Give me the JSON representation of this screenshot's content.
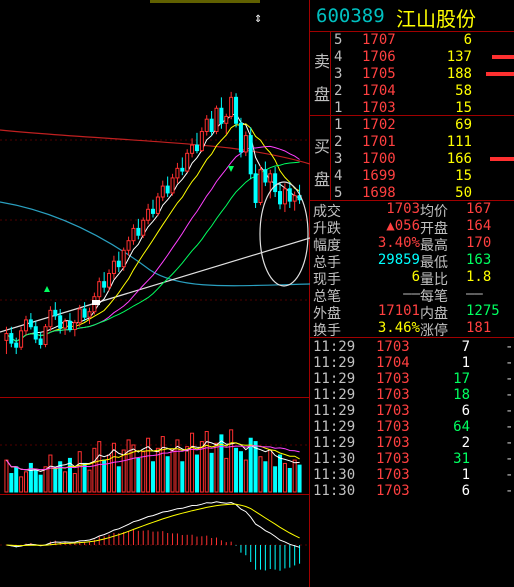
{
  "stock": {
    "code": "600389",
    "name": "江山股份"
  },
  "order_book": {
    "sell_label": "卖盘",
    "buy_label": "买盘",
    "sell": [
      {
        "level": "5",
        "price": "1707",
        "vol": "6"
      },
      {
        "level": "4",
        "price": "1706",
        "vol": "137"
      },
      {
        "level": "3",
        "price": "1705",
        "vol": "188"
      },
      {
        "level": "2",
        "price": "1704",
        "vol": "58"
      },
      {
        "level": "1",
        "price": "1703",
        "vol": "15"
      }
    ],
    "buy": [
      {
        "level": "1",
        "price": "1702",
        "vol": "69"
      },
      {
        "level": "2",
        "price": "1701",
        "vol": "111"
      },
      {
        "level": "3",
        "price": "1700",
        "vol": "166"
      },
      {
        "level": "4",
        "price": "1699",
        "vol": "15"
      },
      {
        "level": "5",
        "price": "1698",
        "vol": "50"
      }
    ]
  },
  "stats": [
    {
      "k": "成交",
      "v": "1703",
      "k2": "均价",
      "v2": "167"
    },
    {
      "k": "升跌",
      "v": "▲056",
      "k2": "开盘",
      "v2": "164"
    },
    {
      "k": "幅度",
      "v": "3.40%",
      "k2": "最高",
      "v2": "170"
    },
    {
      "k": "总手",
      "v": "29859",
      "k2": "最低",
      "v2": "163"
    },
    {
      "k": "现手",
      "v": "6",
      "k2": "量比",
      "v2": "1.8"
    },
    {
      "k": "总笔",
      "v": "——",
      "k2": "每笔",
      "v2": "——"
    },
    {
      "k": "外盘",
      "v": "17101",
      "k2": "内盘",
      "v2": "1275"
    },
    {
      "k": "换手",
      "v": "3.46%",
      "k2": "涨停",
      "v2": "181"
    }
  ],
  "ticks": [
    {
      "t": "11:29",
      "p": "1703",
      "n": "7",
      "d": "-"
    },
    {
      "t": "11:29",
      "p": "1704",
      "n": "1",
      "d": "-"
    },
    {
      "t": "11:29",
      "p": "1703",
      "n": "17",
      "d": "-"
    },
    {
      "t": "11:29",
      "p": "1703",
      "n": "18",
      "d": "-"
    },
    {
      "t": "11:29",
      "p": "1703",
      "n": "6",
      "d": "-"
    },
    {
      "t": "11:29",
      "p": "1703",
      "n": "64",
      "d": "-"
    },
    {
      "t": "11:29",
      "p": "1703",
      "n": "2",
      "d": "-"
    },
    {
      "t": "11:30",
      "p": "1703",
      "n": "31",
      "d": "-"
    },
    {
      "t": "11:30",
      "p": "1703",
      "n": "1",
      "d": "-"
    },
    {
      "t": "11:30",
      "p": "1703",
      "n": "6",
      "d": "-"
    }
  ],
  "colors": {
    "up": "#ff3030",
    "down": "#00ffff",
    "neutral": "#ffff00",
    "grid": "#a00000",
    "code": "#00c0c0"
  },
  "chart_data": {
    "type": "candlestick",
    "candles": [
      [
        20,
        21,
        19,
        20.5
      ],
      [
        20.5,
        21,
        19.5,
        19.8
      ],
      [
        19.8,
        20.2,
        19,
        19.5
      ],
      [
        19.5,
        21,
        19.3,
        20.7
      ],
      [
        20.7,
        21.8,
        20.4,
        21.5
      ],
      [
        21.5,
        22,
        20.8,
        21
      ],
      [
        21,
        21.4,
        19.8,
        20.1
      ],
      [
        20.1,
        20.6,
        19.4,
        19.7
      ],
      [
        19.7,
        21.2,
        19.5,
        21
      ],
      [
        21,
        22.5,
        20.7,
        22.2
      ],
      [
        22.2,
        22.8,
        21.5,
        21.8
      ],
      [
        21.8,
        22.3,
        20.5,
        20.9
      ],
      [
        20.9,
        21.6,
        20.4,
        21.4
      ],
      [
        21.4,
        22,
        20.6,
        20.8
      ],
      [
        20.8,
        21.5,
        20.3,
        21.3
      ],
      [
        21.3,
        22.6,
        21,
        22.3
      ],
      [
        22.3,
        22.8,
        21.4,
        21.7
      ],
      [
        21.7,
        22.4,
        21.2,
        22.1
      ],
      [
        22.1,
        23.5,
        21.9,
        23.2
      ],
      [
        23.2,
        24.6,
        22.9,
        24.3
      ],
      [
        24.3,
        25,
        23.5,
        23.9
      ],
      [
        23.9,
        25.2,
        23.6,
        24.9
      ],
      [
        24.9,
        26.2,
        24.5,
        25.8
      ],
      [
        25.8,
        26.5,
        25,
        25.4
      ],
      [
        25.4,
        26.8,
        25.1,
        26.6
      ],
      [
        26.6,
        27.6,
        26.2,
        27.3
      ],
      [
        27.3,
        28.5,
        27,
        28.2
      ],
      [
        28.2,
        28.9,
        27.4,
        27.7
      ],
      [
        27.7,
        29,
        27.5,
        28.8
      ],
      [
        28.8,
        30,
        28.5,
        29.6
      ],
      [
        29.6,
        30.3,
        29,
        29.3
      ],
      [
        29.3,
        30.8,
        29.1,
        30.5
      ],
      [
        30.5,
        31.7,
        30.2,
        31.3
      ],
      [
        31.3,
        32,
        30.5,
        30.8
      ],
      [
        30.8,
        32.2,
        30.6,
        31.9
      ],
      [
        31.9,
        33,
        31.5,
        32.6
      ],
      [
        32.6,
        33.4,
        32.1,
        32.4
      ],
      [
        32.4,
        34,
        32.3,
        33.7
      ],
      [
        33.7,
        34.8,
        33.4,
        34.3
      ],
      [
        34.3,
        35.2,
        33.7,
        33.9
      ],
      [
        33.9,
        35.6,
        33.8,
        35.3
      ],
      [
        35.3,
        36.5,
        35,
        36.2
      ],
      [
        36.2,
        36.8,
        35,
        35.3
      ],
      [
        35.3,
        37.2,
        35.1,
        37
      ],
      [
        37,
        37.8,
        35.5,
        35.9
      ],
      [
        35.9,
        36.6,
        35.1,
        36.4
      ],
      [
        36.4,
        38.2,
        36.2,
        37.8
      ],
      [
        37.8,
        38.1,
        35.6,
        35.9
      ],
      [
        35.9,
        36.3,
        33.4,
        33.8
      ],
      [
        33.8,
        35.3,
        33.5,
        35
      ],
      [
        35,
        35.6,
        31.8,
        32.2
      ],
      [
        32.2,
        32.9,
        29.7,
        30.1
      ],
      [
        30.1,
        32.8,
        29.9,
        32.5
      ],
      [
        32.5,
        33.1,
        31.3,
        31.6
      ],
      [
        31.6,
        32.5,
        30.4,
        32.2
      ],
      [
        32.2,
        32.7,
        30.5,
        30.9
      ],
      [
        30.9,
        31.6,
        29.6,
        30
      ],
      [
        30,
        31.5,
        29.4,
        31.1
      ],
      [
        31.1,
        31.6,
        29.7,
        30.2
      ],
      [
        30.2,
        30.9,
        29.5,
        30.6
      ],
      [
        30.6,
        31.4,
        30,
        30.3
      ]
    ],
    "volumes": [
      38,
      22,
      30,
      18,
      24,
      34,
      26,
      20,
      30,
      44,
      28,
      36,
      24,
      40,
      22,
      48,
      34,
      26,
      52,
      60,
      38,
      44,
      58,
      30,
      50,
      62,
      56,
      40,
      48,
      64,
      36,
      52,
      66,
      42,
      50,
      62,
      36,
      54,
      70,
      44,
      60,
      72,
      46,
      58,
      68,
      40,
      74,
      52,
      48,
      38,
      64,
      60,
      42,
      36,
      50,
      30,
      44,
      34,
      28,
      38,
      32
    ],
    "price_range": [
      16,
      42
    ],
    "volume_range": [
      0,
      100
    ]
  }
}
